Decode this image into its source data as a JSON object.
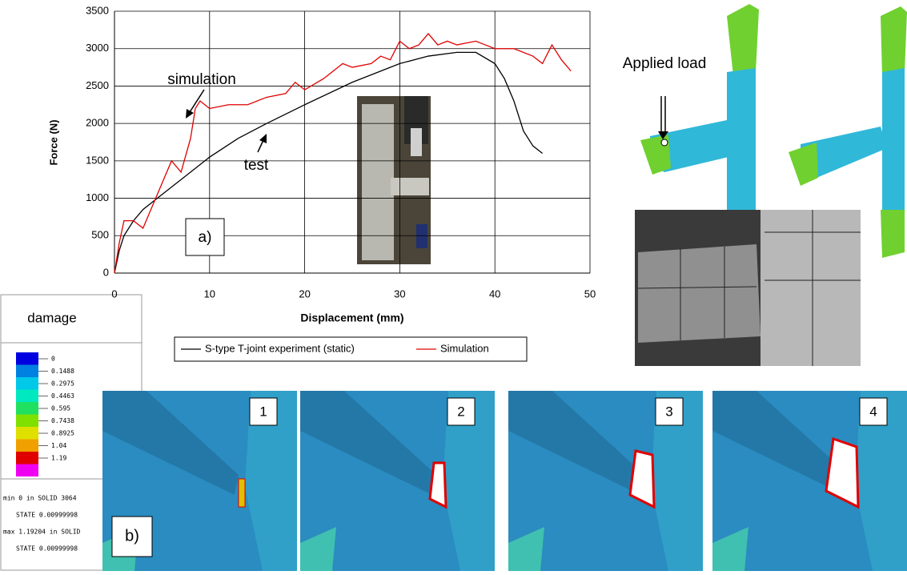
{
  "chart_data": {
    "type": "line",
    "x_label": "Displacement (mm)",
    "y_label": "Force (N)",
    "xlim": [
      0,
      50
    ],
    "xticks": [
      0,
      10,
      20,
      30,
      40,
      50
    ],
    "ylim": [
      0,
      3500
    ],
    "yticks": [
      0,
      500,
      1000,
      1500,
      2000,
      2500,
      3000,
      3500
    ],
    "grid": true,
    "annotations": [
      "simulation",
      "test",
      "a)"
    ],
    "series": [
      {
        "name": "S-type T-joint experiment (static)",
        "color": "#000000",
        "x": [
          0,
          0.5,
          1,
          2,
          3,
          5,
          7,
          10,
          13,
          16,
          20,
          25,
          30,
          33,
          36,
          38,
          40,
          41,
          42,
          43,
          44,
          45
        ],
        "values": [
          0,
          300,
          500,
          700,
          850,
          1050,
          1250,
          1550,
          1800,
          2000,
          2250,
          2550,
          2800,
          2900,
          2950,
          2950,
          2800,
          2600,
          2300,
          1900,
          1700,
          1600
        ]
      },
      {
        "name": "Simulation",
        "color": "#e00000",
        "x": [
          0,
          0.5,
          1,
          2,
          3,
          4,
          5,
          6,
          7,
          8,
          8.5,
          9,
          10,
          12,
          14,
          16,
          18,
          19,
          20,
          22,
          24,
          25,
          27,
          28,
          29,
          30,
          31,
          32,
          33,
          34,
          35,
          36,
          38,
          39,
          40,
          42,
          44,
          45,
          46,
          47,
          48
        ],
        "values": [
          0,
          400,
          700,
          700,
          600,
          900,
          1200,
          1500,
          1350,
          1800,
          2200,
          2300,
          2200,
          2250,
          2250,
          2350,
          2400,
          2550,
          2450,
          2600,
          2800,
          2750,
          2800,
          2900,
          2850,
          3100,
          3000,
          3050,
          3200,
          3050,
          3100,
          3050,
          3100,
          3050,
          3000,
          3000,
          2900,
          2800,
          3050,
          2850,
          2700
        ]
      }
    ]
  },
  "figure": {
    "applied_load": "Applied load",
    "damage_legend": {
      "title": "damage",
      "levels": [
        {
          "label": "0",
          "color": "#0000e0"
        },
        {
          "label": "0.1488",
          "color": "#0080e0"
        },
        {
          "label": "0.2975",
          "color": "#00c8e8"
        },
        {
          "label": "0.4463",
          "color": "#00e8c0"
        },
        {
          "label": "0.595",
          "color": "#20e060"
        },
        {
          "label": "0.7438",
          "color": "#80e000"
        },
        {
          "label": "0.8925",
          "color": "#e0e000"
        },
        {
          "label": "1.04",
          "color": "#f0a000"
        },
        {
          "label": "1.19",
          "color": "#e00000"
        }
      ],
      "extra_color": "#f000f0",
      "notes": [
        "min 0 in SOLID 3064",
        "STATE 0.00999998",
        "max 1.19204 in SOLID",
        "STATE 0.00999998"
      ]
    },
    "panel_b": "b)",
    "panels": [
      "1",
      "2",
      "3",
      "4"
    ]
  }
}
